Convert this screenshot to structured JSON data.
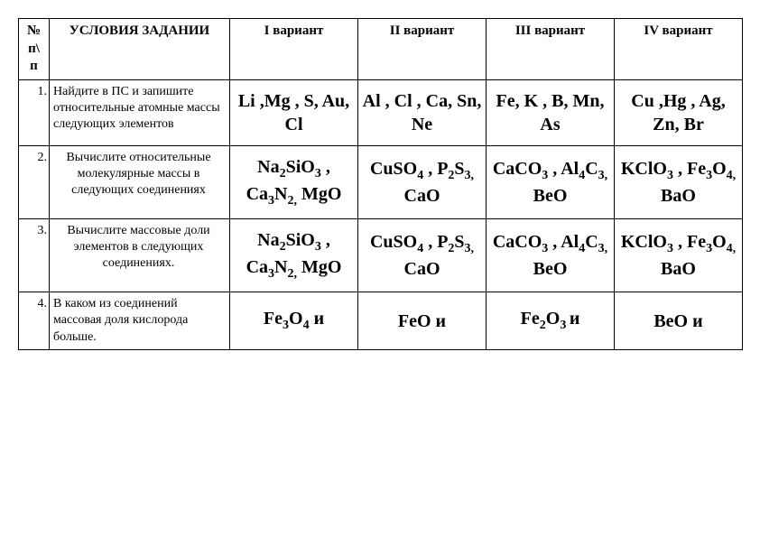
{
  "header": {
    "num": "№ п\\ п",
    "task": "УСЛОВИЯ ЗАДАНИИ",
    "v1": "I вариант",
    "v2": "II вариант",
    "v3": "III вариант",
    "v4": "IV вариант"
  },
  "rows": [
    {
      "num": "1.",
      "task": "Найдите в ПС и запишите относительные атомные массы следующих элементов",
      "task_align": "left",
      "v1": "Li ,Mg , S, Au, Cl",
      "v2": "Al , Cl , Ca, Sn, Ne",
      "v3": "Fe,  K , B, Mn, As",
      "v4": "Cu  ,Hg , Ag, Zn, Br"
    },
    {
      "num": "2.",
      "task": "Вычислите относительные молекулярные массы в следующих соединениях",
      "task_align": "center",
      "v1": "Na<sub>2</sub>SiO<sub>3</sub> , Ca<sub>3</sub>N<sub>2,</sub> MgO",
      "v2": "CuSO<sub>4</sub> , P<sub>2</sub>S<sub>3,</sub> CaO",
      "v3": "CaCO<sub>3</sub> , Al<sub>4</sub>C<sub>3,</sub> BeO",
      "v4": "KClO<sub>3</sub> , Fe<sub>3</sub>O<sub>4,</sub> BaO"
    },
    {
      "num": "3.",
      "task": "Вычислите массовые доли элементов в следующих соединениях.",
      "task_align": "center",
      "v1": "Na<sub>2</sub>SiO<sub>3</sub> , Ca<sub>3</sub>N<sub>2,</sub> MgO",
      "v2": "CuSO<sub>4</sub> , P<sub>2</sub>S<sub>3,</sub> CaO",
      "v3": "CaCO<sub>3</sub> , Al<sub>4</sub>C<sub>3,</sub> BeO",
      "v4": "KClO<sub>3</sub> , Fe<sub>3</sub>O<sub>4,</sub> BaO"
    },
    {
      "num": "4.",
      "task": "В каком из соединений массовая доля кислорода больше.",
      "task_align": "left",
      "v1": "Fe<sub>3</sub>O<sub>4</sub>  и",
      "v2": "FeO  и",
      "v3": "Fe<sub>2</sub>O<sub>3 </sub>и",
      "v4": "BeO  и"
    }
  ]
}
